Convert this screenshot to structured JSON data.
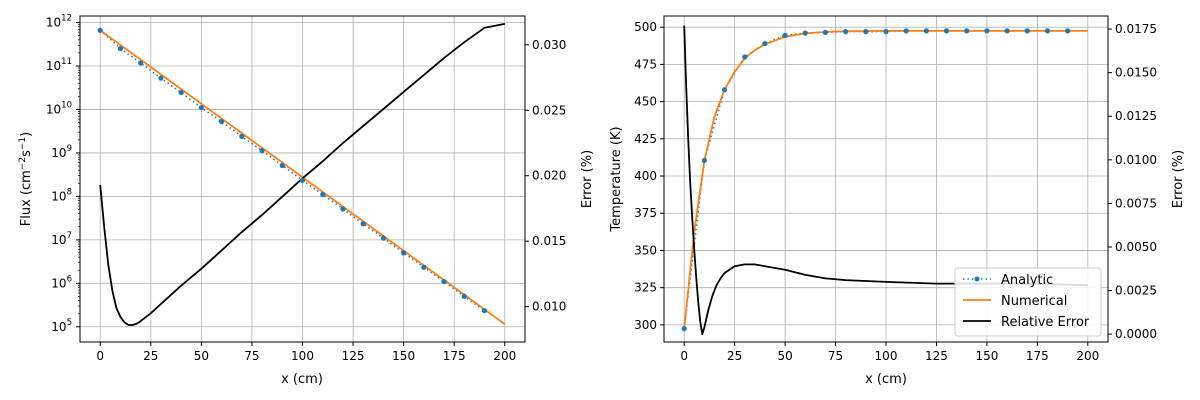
{
  "chart_data": [
    {
      "type": "line",
      "xlabel": "x (cm)",
      "ylabel_left_base": "Flux (cm",
      "ylabel_left_exp1": "−2",
      "ylabel_left_mid": "s",
      "ylabel_left_exp2": "−1",
      "ylabel_left_end": ")",
      "ylabel_right": "Error (%)",
      "left_scale": "log",
      "xlim": [
        -10,
        210
      ],
      "ylim_left_exp": [
        4.65,
        12.15
      ],
      "ylim_right": [
        0.0073,
        0.0322
      ],
      "grid": true,
      "x_ticks": [
        0,
        25,
        50,
        75,
        100,
        125,
        150,
        175,
        200
      ],
      "left_ticks": [
        {
          "exp": 5,
          "base": "10",
          "sup": "5"
        },
        {
          "exp": 6,
          "base": "10",
          "sup": "6"
        },
        {
          "exp": 7,
          "base": "10",
          "sup": "7"
        },
        {
          "exp": 8,
          "base": "10",
          "sup": "8"
        },
        {
          "exp": 9,
          "base": "10",
          "sup": "9"
        },
        {
          "exp": 10,
          "base": "10",
          "sup": "10"
        },
        {
          "exp": 11,
          "base": "10",
          "sup": "11"
        },
        {
          "exp": 12,
          "base": "10",
          "sup": "12"
        }
      ],
      "right_ticks": [
        "0.010",
        "0.015",
        "0.020",
        "0.025",
        "0.030"
      ],
      "series": [
        {
          "axis": "left",
          "style": "dotted-markers",
          "color": "#1f77b4",
          "x": [
            0,
            10,
            20,
            30,
            40,
            50,
            60,
            70,
            80,
            90,
            100,
            110,
            120,
            130,
            140,
            150,
            160,
            170,
            180,
            190
          ],
          "log10_y": [
            11.82,
            11.4,
            11.07,
            10.72,
            10.39,
            10.04,
            9.72,
            9.38,
            9.05,
            8.71,
            8.37,
            8.04,
            7.71,
            7.37,
            7.04,
            6.7,
            6.37,
            6.04,
            5.7,
            5.37
          ]
        },
        {
          "axis": "left",
          "style": "solid",
          "color": "#ff7f0e",
          "x": [
            0,
            200
          ],
          "log10_y": [
            11.82,
            5.06
          ]
        },
        {
          "axis": "right",
          "style": "solid",
          "color": "#000000",
          "x": [
            0,
            2,
            4,
            6,
            8,
            10,
            12,
            14,
            16,
            18,
            20,
            25,
            30,
            40,
            50,
            60,
            70,
            80,
            90,
            100,
            110,
            120,
            130,
            140,
            150,
            160,
            170,
            180,
            190,
            200
          ],
          "y": [
            0.0193,
            0.016,
            0.0132,
            0.0112,
            0.0099,
            0.0092,
            0.0088,
            0.0086,
            0.0086,
            0.0087,
            0.0089,
            0.0095,
            0.0102,
            0.0116,
            0.0129,
            0.0143,
            0.0157,
            0.017,
            0.0184,
            0.0198,
            0.0211,
            0.0225,
            0.0238,
            0.0251,
            0.0264,
            0.0277,
            0.029,
            0.0302,
            0.0313,
            0.0316
          ]
        }
      ]
    },
    {
      "type": "line",
      "xlabel": "x (cm)",
      "ylabel_left": "Temperature (K)",
      "ylabel_right": "Error (%)",
      "xlim": [
        -10,
        210
      ],
      "ylim_left": [
        288.5,
        507.5
      ],
      "ylim_right": [
        -0.00045,
        0.01825
      ],
      "grid": true,
      "legend_position": "lower-right",
      "x_ticks": [
        0,
        25,
        50,
        75,
        100,
        125,
        150,
        175,
        200
      ],
      "left_ticks": [
        "300",
        "325",
        "350",
        "375",
        "400",
        "425",
        "450",
        "475",
        "500"
      ],
      "right_ticks": [
        "0.0000",
        "0.0025",
        "0.0050",
        "0.0075",
        "0.0100",
        "0.0125",
        "0.0150",
        "0.0175"
      ],
      "series": [
        {
          "name": "Analytic",
          "axis": "left",
          "style": "dotted-markers",
          "color": "#1f77b4",
          "x": [
            0,
            10,
            20,
            30,
            40,
            50,
            60,
            70,
            80,
            90,
            100,
            110,
            120,
            130,
            140,
            150,
            160,
            170,
            180,
            190
          ],
          "y": [
            297.5,
            410.5,
            458,
            480,
            489,
            494.5,
            496,
            496.5,
            497,
            497,
            497,
            497.5,
            497.5,
            497.5,
            497.5,
            497.5,
            497.5,
            497.5,
            497.5,
            497.5
          ]
        },
        {
          "name": "Numerical",
          "axis": "left",
          "style": "solid",
          "color": "#ff7f0e",
          "x": [
            0,
            5,
            10,
            15,
            20,
            25,
            30,
            35,
            40,
            50,
            60,
            70,
            80,
            100,
            125,
            150,
            175,
            200
          ],
          "y": [
            297.5,
            363,
            410.5,
            440,
            458,
            470,
            479,
            484.5,
            488.5,
            493.5,
            495.8,
            496.8,
            497.2,
            497.5,
            497.5,
            497.5,
            497.5,
            497.5
          ]
        },
        {
          "name": "Relative Error",
          "axis": "right",
          "style": "solid",
          "color": "#000000",
          "x": [
            0,
            1,
            2,
            3,
            4,
            5,
            6,
            7,
            8,
            9,
            10,
            11,
            12,
            14,
            16,
            18,
            20,
            25,
            30,
            35,
            40,
            50,
            60,
            70,
            80,
            100,
            125,
            150,
            175,
            200
          ],
          "y": [
            0.0177,
            0.0142,
            0.0112,
            0.0087,
            0.0066,
            0.0048,
            0.0032,
            0.0018,
            0.0007,
            0.0,
            0.0004,
            0.0009,
            0.0014,
            0.0022,
            0.0028,
            0.0032,
            0.0035,
            0.0039,
            0.004,
            0.004,
            0.0039,
            0.0037,
            0.0034,
            0.0032,
            0.0031,
            0.003,
            0.0029,
            0.0029,
            0.0029,
            0.0028
          ]
        }
      ]
    }
  ]
}
